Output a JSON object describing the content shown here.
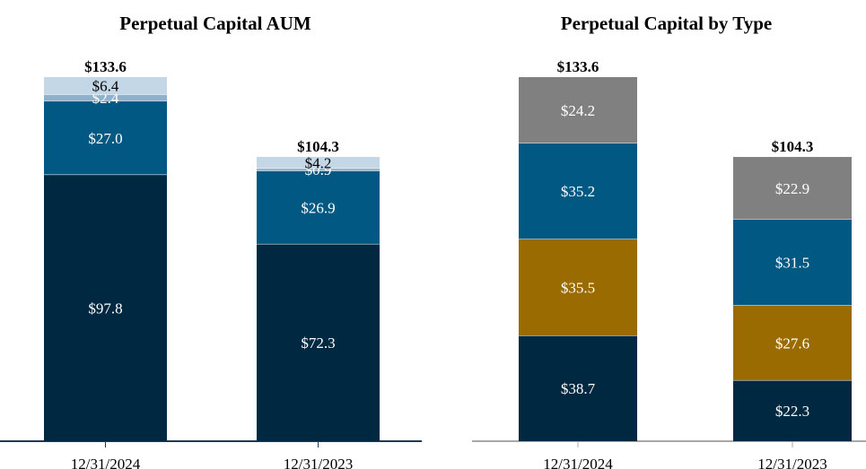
{
  "chart_data": [
    {
      "type": "bar",
      "stacked": true,
      "title": "Perpetual Capital AUM",
      "categories": [
        "12/31/2024",
        "12/31/2023"
      ],
      "totals": [
        "$133.6",
        "$104.3"
      ],
      "series": [
        {
          "name": "segment-1",
          "color": "#002841",
          "text_color": "#ffffff",
          "values": [
            97.8,
            72.3
          ],
          "labels": [
            "$97.8",
            "$72.3"
          ]
        },
        {
          "name": "segment-2",
          "color": "#005883",
          "text_color": "#ffffff",
          "values": [
            27.0,
            26.9
          ],
          "labels": [
            "$27.0",
            "$26.9"
          ]
        },
        {
          "name": "segment-3",
          "color": "#8fb1cc",
          "text_color": "#ffffff",
          "values": [
            2.4,
            0.9
          ],
          "labels": [
            "$2.4",
            "$0.9"
          ]
        },
        {
          "name": "segment-4",
          "color": "#c4d7e7",
          "text_color": "#000000",
          "values": [
            6.4,
            4.2
          ],
          "labels": [
            "$6.4",
            "$4.2"
          ]
        }
      ],
      "ylim": [
        0,
        133.6
      ],
      "grid": false,
      "legend": "none"
    },
    {
      "type": "bar",
      "stacked": true,
      "title": "Perpetual Capital by Type",
      "categories": [
        "12/31/2024",
        "12/31/2023"
      ],
      "totals": [
        "$133.6",
        "$104.3"
      ],
      "series": [
        {
          "name": "segment-1",
          "color": "#002841",
          "text_color": "#ffffff",
          "values": [
            38.7,
            22.3
          ],
          "labels": [
            "$38.7",
            "$22.3"
          ]
        },
        {
          "name": "segment-2",
          "color": "#9a6b00",
          "text_color": "#ffffff",
          "values": [
            35.5,
            27.6
          ],
          "labels": [
            "$35.5",
            "$27.6"
          ]
        },
        {
          "name": "segment-3",
          "color": "#005883",
          "text_color": "#ffffff",
          "values": [
            35.2,
            31.5
          ],
          "labels": [
            "$35.2",
            "$31.5"
          ]
        },
        {
          "name": "segment-4",
          "color": "#808080",
          "text_color": "#ffffff",
          "values": [
            24.2,
            22.9
          ],
          "labels": [
            "$24.2",
            "$22.9"
          ]
        }
      ],
      "ylim": [
        0,
        133.6
      ],
      "grid": false,
      "legend": "none"
    }
  ]
}
